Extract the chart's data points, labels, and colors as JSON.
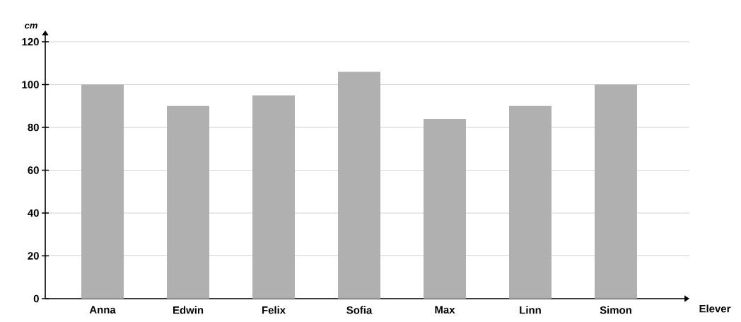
{
  "chart_data": {
    "type": "bar",
    "xlabel": "Elever",
    "ylabel": "cm",
    "categories": [
      "Anna",
      "Edwin",
      "Felix",
      "Sofia",
      "Max",
      "Linn",
      "Simon"
    ],
    "values": [
      100,
      90,
      95,
      106,
      84,
      90,
      100
    ],
    "color": "#afb0af",
    "ylim": [
      0,
      123
    ],
    "yticks": [
      0,
      20,
      40,
      60,
      80,
      100,
      120
    ],
    "grid": "y"
  }
}
